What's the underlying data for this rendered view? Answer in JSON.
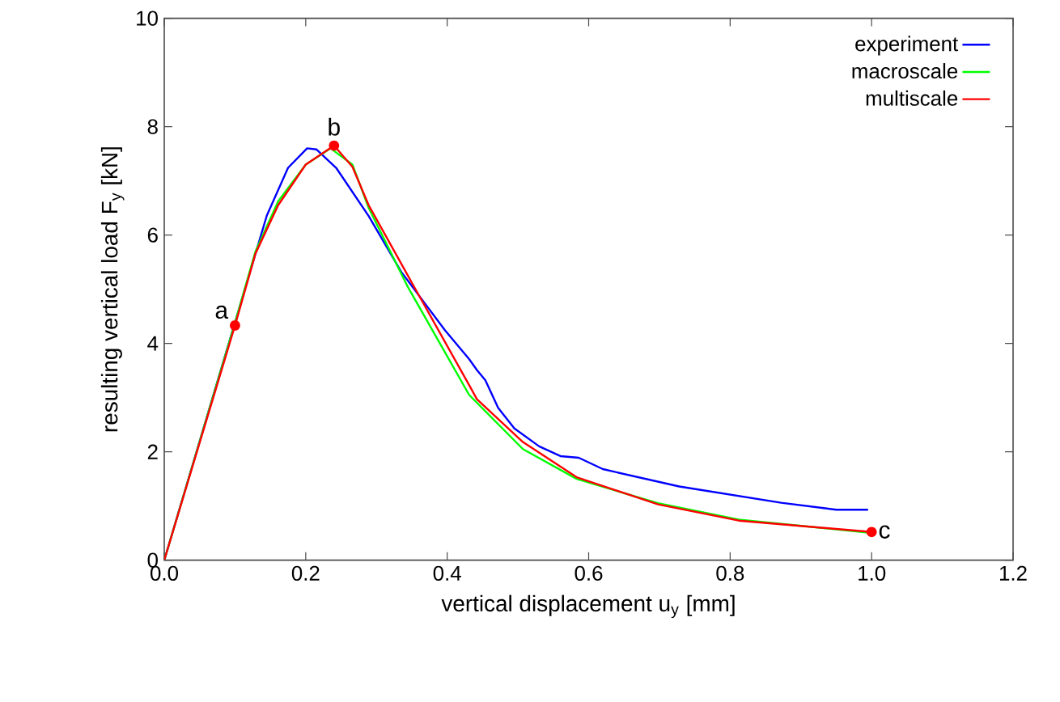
{
  "chart_data": {
    "type": "line",
    "xlabel": "vertical displacement u$_{y}$ [mm]",
    "ylabel": "resulting vertical load F$_{y}$ [kN]",
    "xlim": [
      0,
      1.2
    ],
    "ylim": [
      0,
      10
    ],
    "xticks": [
      {
        "value": 0,
        "label": "0.0"
      },
      {
        "value": 0.2,
        "label": "0.2"
      },
      {
        "value": 0.4,
        "label": "0.4"
      },
      {
        "value": 0.6,
        "label": "0.6"
      },
      {
        "value": 0.8,
        "label": "0.8"
      },
      {
        "value": 1,
        "label": "1.0"
      },
      {
        "value": 1.2,
        "label": "1.2"
      }
    ],
    "yticks": [
      0,
      2,
      4,
      6,
      8,
      10
    ],
    "grid": false,
    "legend": "top right",
    "marker": "none",
    "line_style": "solid",
    "series": [
      {
        "name": "experiment",
        "color": "#0000ff",
        "x": [
          0,
          0.145,
          0.175,
          0.202,
          0.215,
          0.243,
          0.289,
          0.335,
          0.397,
          0.431,
          0.442,
          0.454,
          0.472,
          0.495,
          0.53,
          0.56,
          0.586,
          0.62,
          0.728,
          0.872,
          0.95,
          0.995
        ],
        "values": [
          0,
          6.36,
          7.24,
          7.6,
          7.58,
          7.24,
          6.35,
          5.32,
          4.24,
          3.71,
          3.51,
          3.32,
          2.81,
          2.43,
          2.1,
          1.92,
          1.89,
          1.68,
          1.36,
          1.06,
          0.93,
          0.93
        ]
      },
      {
        "name": "macroscale",
        "color": "#00ff00",
        "x": [
          0,
          0.1,
          0.129,
          0.161,
          0.2,
          0.235,
          0.266,
          0.289,
          0.344,
          0.431,
          0.507,
          0.583,
          0.698,
          0.812,
          1.0
        ],
        "values": [
          0,
          4.38,
          5.7,
          6.62,
          7.3,
          7.6,
          7.3,
          6.5,
          5.05,
          3.05,
          2.05,
          1.5,
          1.05,
          0.75,
          0.5
        ]
      },
      {
        "name": "multiscale",
        "color": "#ff0000",
        "x": [
          0,
          0.1,
          0.129,
          0.161,
          0.2,
          0.24,
          0.266,
          0.289,
          0.344,
          0.431,
          0.442,
          0.507,
          0.583,
          0.698,
          0.812,
          1.0
        ],
        "values": [
          0,
          4.33,
          5.66,
          6.55,
          7.3,
          7.65,
          7.26,
          6.55,
          5.26,
          3.23,
          2.97,
          2.18,
          1.53,
          1.03,
          0.73,
          0.52
        ]
      }
    ],
    "annotations": [
      {
        "text": "a",
        "x": 0.1,
        "y": 4.33
      },
      {
        "text": "b",
        "x": 0.24,
        "y": 7.65
      },
      {
        "text": "c",
        "x": 1.0,
        "y": 0.52
      }
    ]
  }
}
